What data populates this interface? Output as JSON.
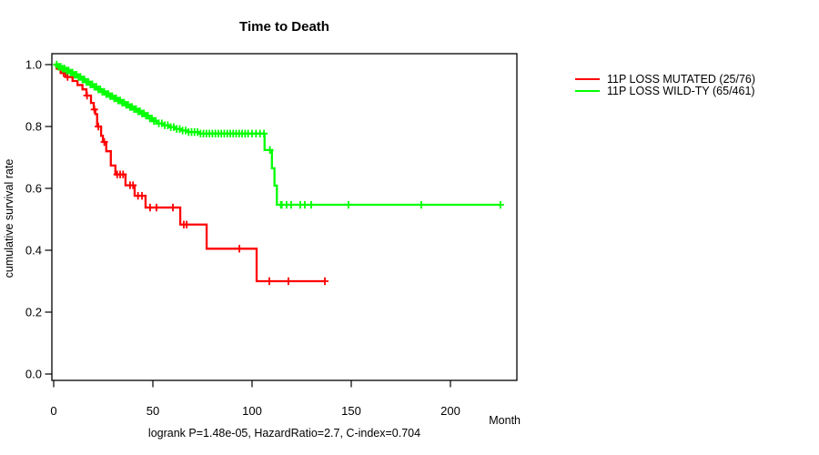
{
  "chart_data": {
    "type": "line",
    "chart_kind": "kaplan-meier-step",
    "title": "Time to Death",
    "ylabel": "cumulative survival rate",
    "xlabel": "Month",
    "footer_annotation": "logrank P=1.48e-05, HazardRatio=2.7, C-index=0.704",
    "grid": false,
    "legend_position": "right-outside",
    "xlim": [
      0,
      233.5
    ],
    "ylim": [
      0,
      1
    ],
    "x_ticks": [
      0,
      50,
      100,
      150,
      200
    ],
    "y_ticks": [
      0.0,
      0.2,
      0.4,
      0.6,
      0.8,
      1.0
    ],
    "y_tick_labels": [
      "0.0",
      "0.2",
      "0.4",
      "0.6",
      "0.8",
      "1.0"
    ],
    "axis_color": "#000000",
    "series": [
      {
        "name": "11P LOSS MUTATED (25/76)",
        "color": "#ff0000",
        "events": 25,
        "n": 76,
        "steps": [
          [
            0,
            1.0
          ],
          [
            1.5,
            0.987
          ],
          [
            3.5,
            0.973
          ],
          [
            6,
            0.96
          ],
          [
            9.5,
            0.947
          ],
          [
            12,
            0.934
          ],
          [
            14.5,
            0.92
          ],
          [
            16.5,
            0.9
          ],
          [
            18.8,
            0.876
          ],
          [
            20.2,
            0.855
          ],
          [
            21,
            0.84
          ],
          [
            21.9,
            0.8
          ],
          [
            23.9,
            0.77
          ],
          [
            24.8,
            0.75
          ],
          [
            26.5,
            0.72
          ],
          [
            28.8,
            0.674
          ],
          [
            31.1,
            0.645
          ],
          [
            36.2,
            0.61
          ],
          [
            40.8,
            0.576
          ],
          [
            46.3,
            0.538
          ],
          [
            63.8,
            0.483
          ],
          [
            77.1,
            0.405
          ],
          [
            102.3,
            0.3
          ]
        ],
        "end_month": 136.7,
        "censor_months": [
          5,
          7,
          16.8,
          20.5,
          22.5,
          25.5,
          32,
          33.5,
          35,
          38.5,
          40,
          42.5,
          44.5,
          48.6,
          51.8,
          60.1,
          65.6,
          67,
          93.6,
          108.7,
          118.3,
          136.7
        ]
      },
      {
        "name": "11P LOSS WILD-TY (65/461)",
        "color": "#00ff00",
        "events": 65,
        "n": 461,
        "steps": [
          [
            0,
            1.0
          ],
          [
            2,
            0.993
          ],
          [
            4,
            0.987
          ],
          [
            6,
            0.981
          ],
          [
            8,
            0.974
          ],
          [
            10,
            0.967
          ],
          [
            12,
            0.96
          ],
          [
            14,
            0.952
          ],
          [
            16,
            0.944
          ],
          [
            18,
            0.936
          ],
          [
            20,
            0.928
          ],
          [
            22,
            0.92
          ],
          [
            24,
            0.912
          ],
          [
            26,
            0.905
          ],
          [
            28,
            0.898
          ],
          [
            30,
            0.891
          ],
          [
            32,
            0.884
          ],
          [
            34,
            0.877
          ],
          [
            36,
            0.87
          ],
          [
            38,
            0.863
          ],
          [
            40,
            0.856
          ],
          [
            42,
            0.849
          ],
          [
            44,
            0.842
          ],
          [
            46,
            0.835
          ],
          [
            48,
            0.826
          ],
          [
            50,
            0.818
          ],
          [
            52.5,
            0.81
          ],
          [
            55,
            0.804
          ],
          [
            58,
            0.798
          ],
          [
            61,
            0.792
          ],
          [
            64,
            0.787
          ],
          [
            68,
            0.782
          ],
          [
            73,
            0.777
          ],
          [
            106.3,
            0.724
          ],
          [
            110,
            0.665
          ],
          [
            111.3,
            0.609
          ],
          [
            112.5,
            0.547
          ]
        ],
        "end_month": 225.2,
        "censor_months": [
          1.5,
          2.5,
          3.5,
          4.5,
          5.5,
          6.5,
          7.5,
          8.5,
          9.5,
          10.5,
          11.5,
          12.5,
          13.5,
          14.5,
          15.5,
          16.5,
          17.5,
          18.5,
          19.5,
          20.5,
          21.5,
          22.5,
          23.5,
          24.5,
          25.5,
          26.5,
          27.5,
          28.5,
          29.5,
          30.5,
          31.5,
          32.5,
          33.5,
          34.5,
          35.5,
          36.5,
          37.5,
          38.5,
          39.5,
          40.5,
          41.5,
          42.5,
          43.5,
          44.5,
          45.5,
          46.5,
          47.5,
          48.5,
          49.5,
          50.5,
          51.5,
          53,
          54.5,
          56,
          57.5,
          59,
          60.5,
          62,
          63.5,
          65,
          66.5,
          68,
          69.5,
          71,
          72.5,
          74,
          75.5,
          77,
          78.5,
          80,
          81.5,
          83,
          84.5,
          86,
          87.5,
          89,
          90.5,
          92,
          93.5,
          95,
          96.5,
          98,
          100,
          102,
          104,
          106,
          109,
          114.5,
          115,
          117.4,
          119.7,
          124.3,
          126.6,
          129.8,
          148.6,
          185.3,
          225.2
        ]
      }
    ]
  }
}
